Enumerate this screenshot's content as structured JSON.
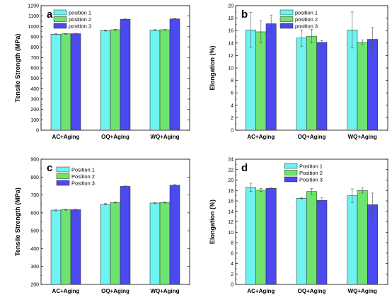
{
  "colors": {
    "position_1": "#6ff3f0",
    "position_2": "#6fe36f",
    "position_3": "#4a4af0"
  },
  "chart_data": [
    {
      "panel": "a",
      "type": "bar",
      "ylabel": "Tensile Strength (MPa)",
      "ylim": [
        0,
        1200
      ],
      "yticks": [
        0,
        100,
        200,
        300,
        400,
        500,
        600,
        700,
        800,
        900,
        1000,
        1100,
        1200
      ],
      "categories": [
        "AC+Aging",
        "OQ+Aging",
        "WQ+Aging"
      ],
      "legend_position": "top-left",
      "series": [
        {
          "name": "position 1",
          "values": [
            925,
            960,
            965
          ],
          "errors": [
            5,
            5,
            5
          ]
        },
        {
          "name": "position 2",
          "values": [
            928,
            968,
            968
          ],
          "errors": [
            4,
            5,
            4
          ]
        },
        {
          "name": "position 3",
          "values": [
            930,
            1068,
            1072
          ],
          "errors": [
            4,
            5,
            4
          ]
        }
      ]
    },
    {
      "panel": "b",
      "type": "bar",
      "ylabel": "Elongation (%)",
      "ylim": [
        0,
        20
      ],
      "yticks": [
        0,
        2,
        4,
        6,
        8,
        10,
        12,
        14,
        16,
        18,
        20
      ],
      "categories": [
        "AC+Aging",
        "OQ+Aging",
        "WQ+Aging"
      ],
      "legend_position": "top-right",
      "series": [
        {
          "name": "position 1",
          "values": [
            16.1,
            14.8,
            16.1
          ],
          "errors": [
            2.8,
            1.3,
            2.9
          ]
        },
        {
          "name": "position 2",
          "values": [
            15.8,
            15.1,
            14.1
          ],
          "errors": [
            1.8,
            1.1,
            0.4
          ]
        },
        {
          "name": "position 3",
          "values": [
            17.1,
            14.1,
            14.6
          ],
          "errors": [
            1.4,
            0.3,
            1.9
          ]
        }
      ]
    },
    {
      "panel": "c",
      "type": "bar",
      "ylabel": "Tensile Strength (MPa)",
      "ylim": [
        200,
        900
      ],
      "yticks": [
        200,
        300,
        400,
        500,
        600,
        700,
        800,
        900
      ],
      "categories": [
        "AC+Aging",
        "OQ+Aging",
        "WQ+Aging"
      ],
      "legend_position": "top-left",
      "series": [
        {
          "name": "Position 1",
          "values": [
            615,
            648,
            655
          ],
          "errors": [
            5,
            4,
            4
          ]
        },
        {
          "name": "Position 2",
          "values": [
            618,
            658,
            658
          ],
          "errors": [
            3,
            3,
            3
          ]
        },
        {
          "name": "Position 3",
          "values": [
            618,
            748,
            755
          ],
          "errors": [
            3,
            3,
            3
          ]
        }
      ]
    },
    {
      "panel": "d",
      "type": "bar",
      "ylabel": "Elongation (%)",
      "ylim": [
        0,
        24
      ],
      "yticks": [
        0,
        2,
        4,
        6,
        8,
        10,
        12,
        14,
        16,
        18,
        20,
        22,
        24
      ],
      "categories": [
        "AC+Aging",
        "OQ+Aging",
        "WQ+Aging"
      ],
      "legend_position": "top-right",
      "series": [
        {
          "name": "Position 1",
          "values": [
            18.6,
            16.5,
            17.0
          ],
          "errors": [
            0.8,
            0.1,
            1.3
          ]
        },
        {
          "name": "Position 2",
          "values": [
            18.1,
            17.8,
            18.0
          ],
          "errors": [
            0.3,
            0.6,
            0.5
          ]
        },
        {
          "name": "Position 3",
          "values": [
            18.4,
            16.1,
            15.3
          ],
          "errors": [
            0.1,
            0.5,
            2.2
          ]
        }
      ]
    }
  ]
}
